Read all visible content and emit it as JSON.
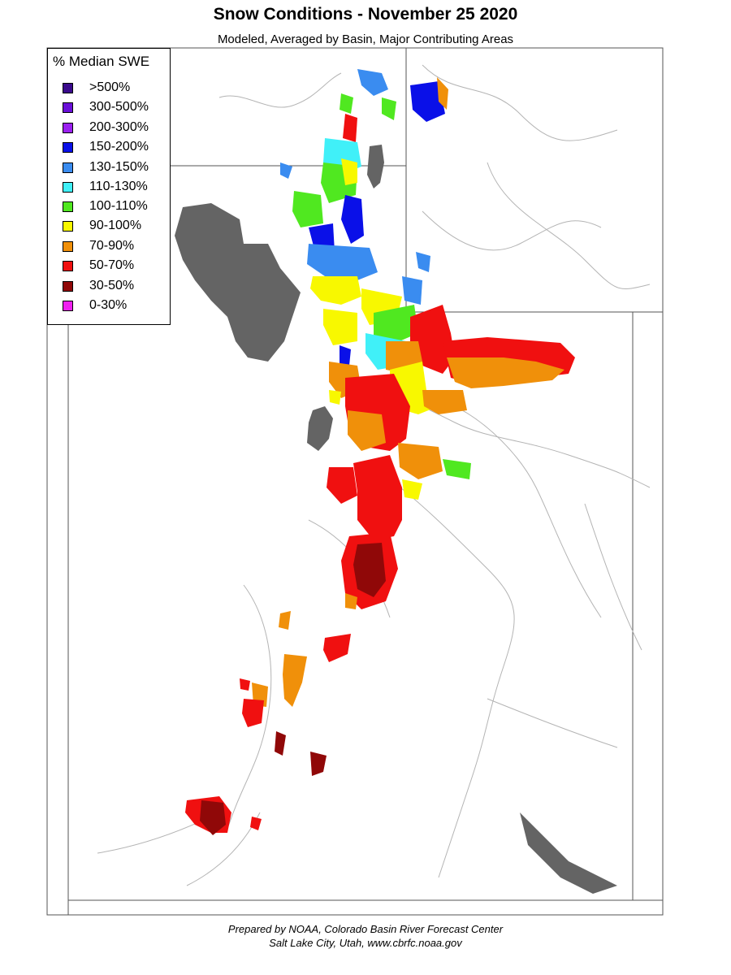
{
  "header": {
    "title": "Snow Conditions - November 25 2020",
    "subtitle": "Modeled, Averaged by Basin, Major Contributing Areas"
  },
  "legend": {
    "title": "% Median SWE",
    "items": [
      {
        "label": ">500%",
        "color": "#3a0a8c"
      },
      {
        "label": "300-500%",
        "color": "#6a10d8"
      },
      {
        "label": "200-300%",
        "color": "#9a20f0"
      },
      {
        "label": "150-200%",
        "color": "#0a10e8"
      },
      {
        "label": "130-150%",
        "color": "#3a8cf0"
      },
      {
        "label": "110-130%",
        "color": "#40f0f8"
      },
      {
        "label": "100-110%",
        "color": "#50e820"
      },
      {
        "label": "90-100%",
        "color": "#f8f800"
      },
      {
        "label": "70-90%",
        "color": "#f0900a"
      },
      {
        "label": "50-70%",
        "color": "#f01010"
      },
      {
        "label": "30-50%",
        "color": "#900808"
      },
      {
        "label": "0-30%",
        "color": "#f020f0"
      }
    ]
  },
  "footer": {
    "line1": "Prepared by NOAA, Colorado Basin River Forecast Center",
    "line2": "Salt Lake City, Utah, www.cbrfc.noaa.gov"
  },
  "colors": {
    "lake": "#646464",
    "border": "#555555",
    "river": "#b4b4b4"
  }
}
